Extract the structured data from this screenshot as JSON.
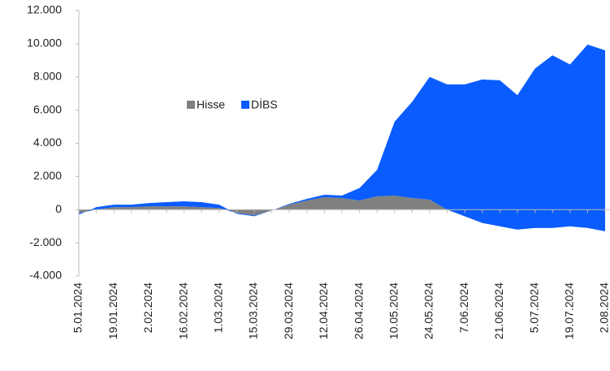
{
  "chart_data": {
    "type": "stacked_area",
    "categories": [
      "5.01.2024",
      null,
      "19.01.2024",
      null,
      "2.02.2024",
      null,
      "16.02.2024",
      null,
      "1.03.2024",
      null,
      "15.03.2024",
      null,
      "29.03.2024",
      null,
      "12.04.2024",
      null,
      "26.04.2024",
      null,
      "10.05.2024",
      null,
      "24.05.2024",
      null,
      "7.06.2024",
      null,
      "21.06.2024",
      null,
      "5.07.2024",
      null,
      "19.07.2024",
      null,
      "2.08.2024"
    ],
    "series": [
      {
        "name": "Hisse",
        "color": "#808080",
        "values": [
          -200,
          0,
          150,
          150,
          200,
          200,
          200,
          150,
          100,
          -200,
          -350,
          -50,
          300,
          550,
          750,
          700,
          550,
          800,
          850,
          700,
          600,
          0,
          -400,
          -800,
          -1000,
          -1200,
          -1100,
          -1100,
          -1000,
          -1100,
          -1300
        ]
      },
      {
        "name": "DİBS",
        "color": "#0a5cff",
        "values": [
          -100,
          150,
          150,
          150,
          200,
          250,
          300,
          300,
          200,
          -50,
          -50,
          0,
          50,
          100,
          150,
          150,
          750,
          1600,
          4450,
          5800,
          7400,
          7550,
          7950,
          8650,
          8800,
          8100,
          9600,
          10400,
          9750,
          11050,
          10900
        ]
      }
    ],
    "ylim": [
      -4000,
      12000
    ],
    "yticks": [
      {
        "value": -4000,
        "label": "-4.000"
      },
      {
        "value": -2000,
        "label": "-2.000"
      },
      0,
      {
        "value": 2000,
        "label": "2.000"
      },
      {
        "value": 4000,
        "label": "4.000"
      },
      {
        "value": 6000,
        "label": "6.000"
      },
      {
        "value": 8000,
        "label": "8.000"
      },
      {
        "value": 10000,
        "label": "10.000"
      },
      {
        "value": 12000,
        "label": "12.000"
      }
    ],
    "legend": "inside-top-left"
  }
}
